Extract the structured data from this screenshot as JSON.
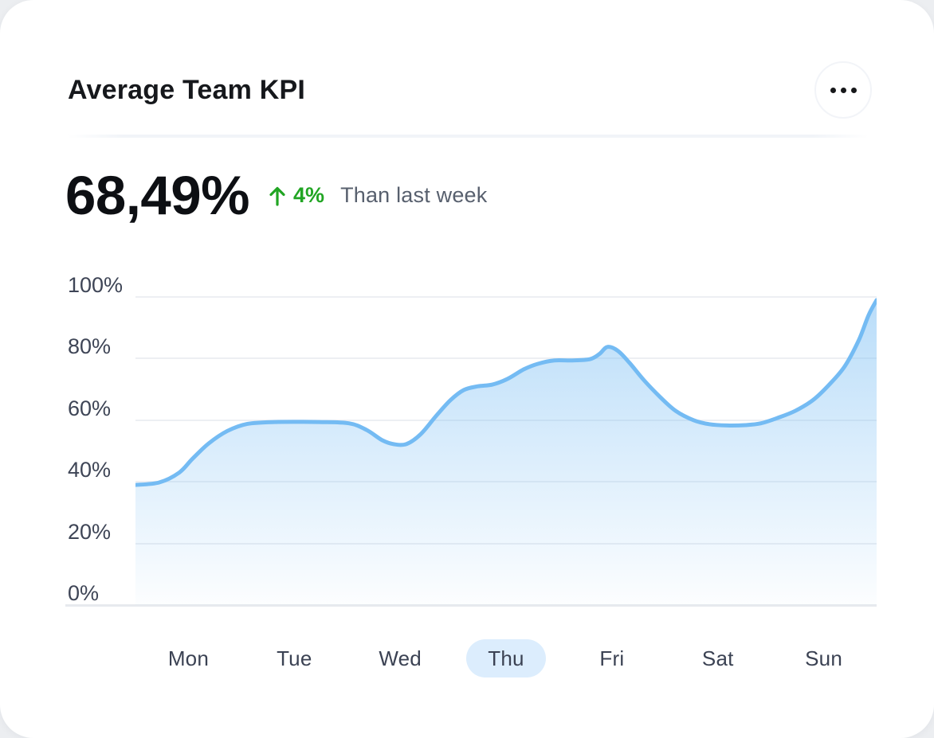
{
  "card": {
    "title": "Average Team KPI",
    "menu_icon": "ellipsis-horizontal-icon",
    "kpi": {
      "value": "68,49%",
      "delta_arrow": "up",
      "delta": "4%",
      "caption": "Than last week"
    }
  },
  "colors": {
    "line": "#74bbf3",
    "fill_base": "#74bbf3",
    "selected_day_pill": "#dcedfd",
    "delta_green": "#21a523",
    "axis_text": "#3e4556",
    "gridline": "#edeff3",
    "baseline": "#e7eaee"
  },
  "chart_data": {
    "type": "area",
    "categories": [
      "Mon",
      "Tue",
      "Wed",
      "Thu",
      "Fri",
      "Sat",
      "Sun"
    ],
    "selected_category": "Thu",
    "y_tick_labels": [
      "0%",
      "20%",
      "40%",
      "60%",
      "80%",
      "100%"
    ],
    "ylim": [
      0,
      100
    ],
    "grid": true,
    "legend": "none",
    "series": [
      {
        "name": "Average Team KPI",
        "values_by_day": {
          "Mon": 47.5,
          "Tue": 59.4,
          "Wed": 52.2,
          "Thu": 73.5,
          "Fri": 81,
          "Sat": 58.3,
          "Sun": 71.3
        },
        "week_start_value": 39,
        "week_peak_value": 84,
        "week_end_value": 99
      }
    ],
    "curve_points": [
      [
        0,
        39
      ],
      [
        3.2,
        39.8
      ],
      [
        5.9,
        43
      ],
      [
        7.7,
        47.5
      ],
      [
        9.9,
        52.5
      ],
      [
        12.4,
        56.5
      ],
      [
        15.1,
        58.8
      ],
      [
        18.8,
        59.4
      ],
      [
        24.7,
        59.4
      ],
      [
        28.8,
        59
      ],
      [
        31.2,
        56.8
      ],
      [
        33.3,
        53.5
      ],
      [
        34.9,
        52.2
      ],
      [
        36.6,
        52.3
      ],
      [
        38.5,
        55.5
      ],
      [
        40.6,
        61.5
      ],
      [
        42.5,
        66.5
      ],
      [
        44.3,
        69.8
      ],
      [
        46.2,
        71
      ],
      [
        48.2,
        71.6
      ],
      [
        50.2,
        73.4
      ],
      [
        52.4,
        76.5
      ],
      [
        54.3,
        78.3
      ],
      [
        56.5,
        79.4
      ],
      [
        58.9,
        79.4
      ],
      [
        61.3,
        79.8
      ],
      [
        62.6,
        81.5
      ],
      [
        63.7,
        83.8
      ],
      [
        65.1,
        82.5
      ],
      [
        66.7,
        78.5
      ],
      [
        68.6,
        73
      ],
      [
        70.8,
        67.5
      ],
      [
        72.9,
        63
      ],
      [
        75.3,
        60
      ],
      [
        77.4,
        58.7
      ],
      [
        79.8,
        58.3
      ],
      [
        82.3,
        58.4
      ],
      [
        84.4,
        59
      ],
      [
        86.6,
        60.7
      ],
      [
        89,
        63
      ],
      [
        91.4,
        66.5
      ],
      [
        93.5,
        71.3
      ],
      [
        95.7,
        77.5
      ],
      [
        97.6,
        86
      ],
      [
        98.9,
        94
      ],
      [
        100,
        99
      ]
    ]
  }
}
